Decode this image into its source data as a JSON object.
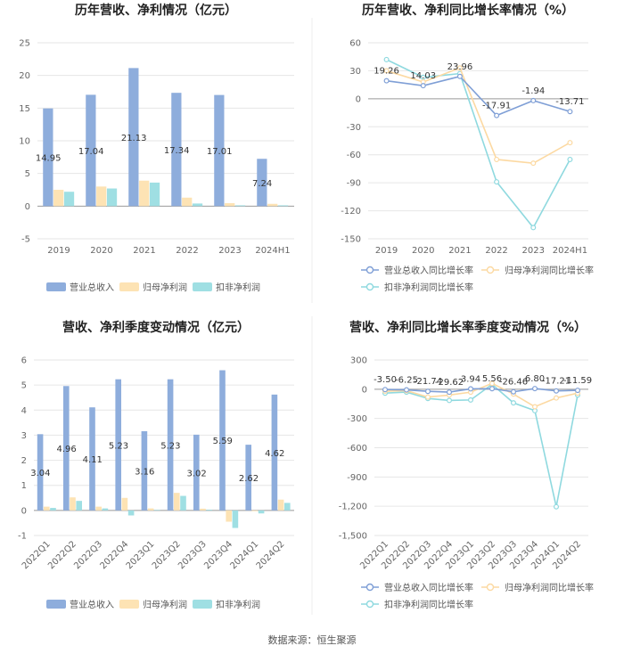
{
  "source": "数据来源：恒生聚源",
  "colors": {
    "revenue": "#8eaddc",
    "net_profit": "#fde3b4",
    "deducted_profit": "#9fdfe3",
    "revenue_line": "#7f9fd6",
    "net_profit_line": "#fcd9a2",
    "deducted_profit_line": "#8fd9df",
    "grid": "#e6e6e6",
    "axis": "#999999"
  },
  "chart_data": [
    {
      "id": "annual",
      "type": "bar",
      "title": "历年营收、净利情况（亿元）",
      "categories": [
        "2019",
        "2020",
        "2021",
        "2022",
        "2023",
        "2024H1"
      ],
      "ylim": [
        -5,
        25
      ],
      "yticks": [
        -5,
        0,
        5,
        10,
        15,
        20,
        25
      ],
      "series": [
        {
          "name": "营业总收入",
          "key": "revenue",
          "values": [
            14.95,
            17.04,
            21.13,
            17.34,
            17.01,
            7.24
          ],
          "labels": [
            "14.95",
            "17.04",
            "21.13",
            "17.34",
            "17.01",
            "7.24"
          ]
        },
        {
          "name": "归母净利润",
          "key": "net_profit",
          "values": [
            2.5,
            3.0,
            3.9,
            1.3,
            0.45,
            0.35
          ]
        },
        {
          "name": "扣非净利润",
          "key": "deducted_profit",
          "values": [
            2.2,
            2.7,
            3.6,
            0.4,
            0.12,
            0.12
          ]
        }
      ]
    },
    {
      "id": "annual_growth",
      "type": "line",
      "title": "历年营收、净利同比增长率情况（%）",
      "categories": [
        "2019",
        "2020",
        "2021",
        "2022",
        "2023",
        "2024H1"
      ],
      "ylim": [
        -150,
        60
      ],
      "yticks": [
        -150,
        -120,
        -90,
        -60,
        -30,
        0,
        30,
        60
      ],
      "series": [
        {
          "name": "营业总收入同比增长率",
          "key": "revenue_line",
          "values": [
            19.26,
            14.03,
            23.96,
            -17.91,
            -1.94,
            -13.71
          ],
          "labels": [
            "19.26",
            "14.03",
            "23.96",
            "-17.91",
            "-1.94",
            "-13.71"
          ]
        },
        {
          "name": "归母净利润同比增长率",
          "key": "net_profit_line",
          "values": [
            30,
            18,
            33,
            -65,
            -69,
            -47
          ]
        },
        {
          "name": "扣非净利润同比增长率",
          "key": "deducted_profit_line",
          "values": [
            42,
            23,
            27,
            -89,
            -138,
            -65
          ]
        }
      ]
    },
    {
      "id": "quarterly",
      "type": "bar",
      "title": "营收、净利季度变动情况（亿元）",
      "categories": [
        "2022Q1",
        "2022Q2",
        "2022Q3",
        "2022Q4",
        "2023Q1",
        "2023Q2",
        "2023Q3",
        "2023Q4",
        "2024Q1",
        "2024Q2"
      ],
      "ylim": [
        -1,
        6
      ],
      "yticks": [
        -1,
        0,
        1,
        2,
        3,
        4,
        5,
        6
      ],
      "series": [
        {
          "name": "营业总收入",
          "key": "revenue",
          "values": [
            3.04,
            4.96,
            4.11,
            5.23,
            3.16,
            5.23,
            3.02,
            5.59,
            2.62,
            4.62
          ],
          "labels": [
            "3.04",
            "4.96",
            "4.11",
            "5.23",
            "3.16",
            "5.23",
            "3.02",
            "5.59",
            "2.62",
            "4.62"
          ]
        },
        {
          "name": "归母净利润",
          "key": "net_profit",
          "values": [
            0.15,
            0.52,
            0.15,
            0.5,
            0.08,
            0.7,
            0.07,
            -0.45,
            -0.03,
            0.43
          ]
        },
        {
          "name": "扣非净利润",
          "key": "deducted_profit",
          "values": [
            0.1,
            0.38,
            0.08,
            -0.2,
            0.02,
            0.58,
            0.03,
            -0.7,
            -0.12,
            0.3
          ]
        }
      ]
    },
    {
      "id": "quarterly_growth",
      "type": "line",
      "title": "营收、净利同比增长率季度变动情况（%）",
      "categories": [
        "2022Q1",
        "2022Q2",
        "2022Q3",
        "2022Q4",
        "2023Q1",
        "2023Q2",
        "2023Q3",
        "2023Q4",
        "2024Q1",
        "2024Q2"
      ],
      "ylim": [
        -1500,
        300
      ],
      "yticks": [
        -1500,
        -1200,
        -900,
        -600,
        -300,
        0,
        300
      ],
      "series": [
        {
          "name": "营业总收入同比增长率",
          "key": "revenue_line",
          "values": [
            -3.5,
            -6.25,
            -21.74,
            -29.62,
            3.94,
            5.56,
            -26.46,
            6.8,
            -17.21,
            -11.59
          ],
          "labels": [
            "-3.50",
            "-6.25",
            "-21.74",
            "-29.62",
            "3.94",
            "5.56",
            "-26.46",
            "6.80",
            "-17.21",
            "-11.59"
          ]
        },
        {
          "name": "归母净利润同比增长率",
          "key": "net_profit_line",
          "values": [
            -20,
            -15,
            -80,
            -60,
            -30,
            60,
            -50,
            -180,
            -90,
            -40
          ]
        },
        {
          "name": "扣非净利润同比增长率",
          "key": "deducted_profit_line",
          "values": [
            -40,
            -30,
            -95,
            -115,
            -110,
            50,
            -140,
            -220,
            -1205,
            -60
          ]
        }
      ]
    }
  ]
}
